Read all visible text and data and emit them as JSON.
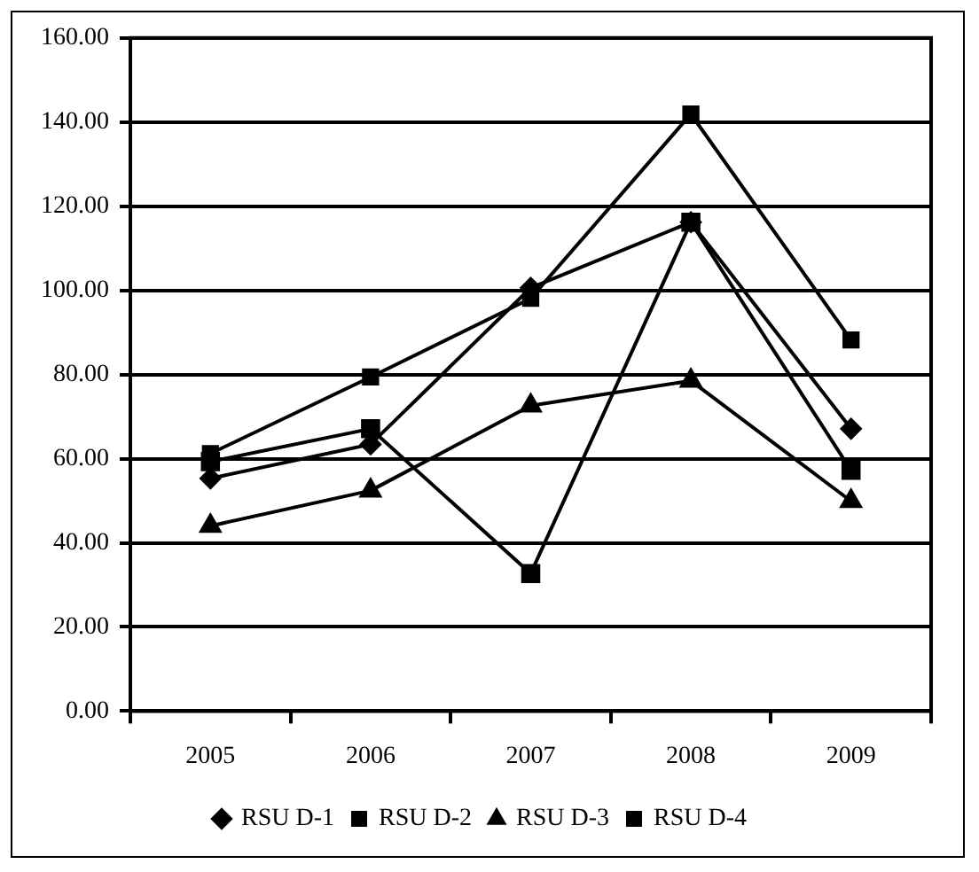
{
  "chart_data": {
    "type": "line",
    "categories": [
      "2005",
      "2006",
      "2007",
      "2008",
      "2009"
    ],
    "series": [
      {
        "name": "RSU D-1",
        "color": "#000000",
        "marker": "diamond",
        "values": [
          55.3,
          63.4,
          100.6,
          116.2,
          67.1
        ]
      },
      {
        "name": "RSU D-2",
        "color": "#000000",
        "marker": "square",
        "values": [
          61.2,
          79.4,
          98.1,
          141.9,
          88.2
        ]
      },
      {
        "name": "RSU D-3",
        "color": "#000000",
        "marker": "triangle",
        "values": [
          44.0,
          52.4,
          72.6,
          78.5,
          49.9
        ]
      },
      {
        "name": "RSU D-4",
        "color": "#000000",
        "marker": "square",
        "values": [
          59.3,
          67.1,
          32.7,
          116.2,
          57.2
        ]
      }
    ],
    "ylim": [
      0,
      160
    ],
    "yticks": [
      {
        "value": 0,
        "label": "0.00"
      },
      {
        "value": 20,
        "label": "20.00"
      },
      {
        "value": 40,
        "label": "40.00"
      },
      {
        "value": 60,
        "label": "60.00"
      },
      {
        "value": 80,
        "label": "80.00"
      },
      {
        "value": 100,
        "label": "100.00"
      },
      {
        "value": 120,
        "label": "120.00"
      },
      {
        "value": 140,
        "label": "140.00"
      },
      {
        "value": 160,
        "label": "160.00"
      }
    ],
    "grid": "y",
    "legend": "bottom",
    "line_style": "solid"
  }
}
